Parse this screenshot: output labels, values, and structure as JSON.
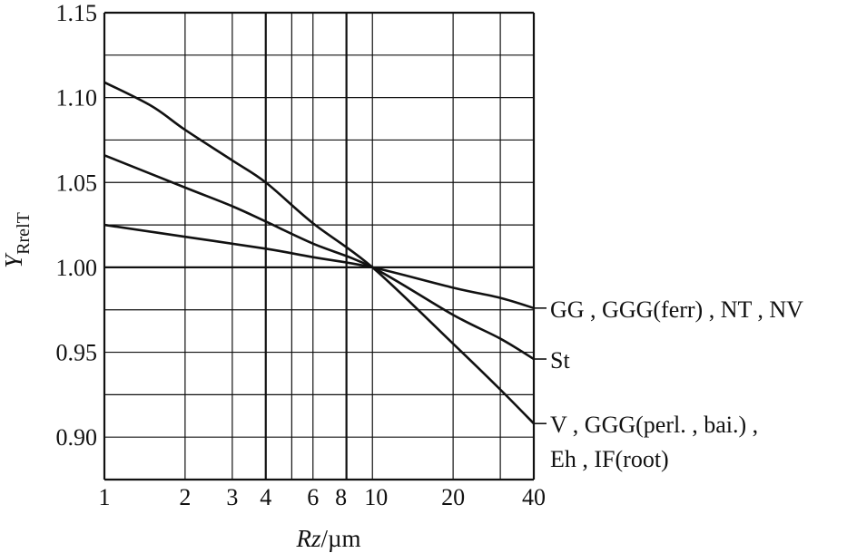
{
  "chart_data": {
    "type": "line",
    "title": "",
    "xlabel": "Rz/µm",
    "xlabel_parts": {
      "italic": "Rz",
      "rest": "/µm"
    },
    "ylabel": "Y_RrelT",
    "ylabel_parts": {
      "main": "Y",
      "sub": "RrelT"
    },
    "x_scale": "log",
    "xlim": [
      1,
      40
    ],
    "ylim": [
      0.875,
      1.15
    ],
    "grid": true,
    "x_ticks": [
      {
        "value": 1,
        "label": "1"
      },
      {
        "value": 2,
        "label": "2"
      },
      {
        "value": 3,
        "label": "3"
      },
      {
        "value": 4,
        "label": "4"
      },
      {
        "value": 6,
        "label": "6"
      },
      {
        "value": 8,
        "label": "8"
      },
      {
        "value": 10,
        "label": "10"
      },
      {
        "value": 20,
        "label": "20"
      },
      {
        "value": 40,
        "label": "40"
      }
    ],
    "x_grid": [
      1,
      2,
      3,
      4,
      5,
      6,
      8,
      10,
      20,
      30,
      40
    ],
    "x_grid_bold": [
      4,
      8
    ],
    "y_ticks": [
      {
        "value": 0.9,
        "label": "0.90"
      },
      {
        "value": 0.95,
        "label": "0.95"
      },
      {
        "value": 1.0,
        "label": "1.00"
      },
      {
        "value": 1.05,
        "label": "1.05"
      },
      {
        "value": 1.1,
        "label": "1.10"
      },
      {
        "value": 1.15,
        "label": "1.15"
      }
    ],
    "y_grid": [
      0.875,
      0.9,
      0.925,
      0.95,
      0.975,
      1.0,
      1.025,
      1.05,
      1.075,
      1.1,
      1.125,
      1.15
    ],
    "y_grid_bold": [
      1.0
    ],
    "series": [
      {
        "name_lines": [
          "GG , GGG(ferr) , NT , NV"
        ],
        "x": [
          1,
          2,
          4,
          6,
          10,
          20,
          30,
          40
        ],
        "values": [
          1.025,
          1.018,
          1.011,
          1.006,
          1.0,
          0.988,
          0.982,
          0.976
        ]
      },
      {
        "name_lines": [
          "St"
        ],
        "x": [
          1,
          2,
          3,
          4,
          6,
          10,
          20,
          30,
          40
        ],
        "values": [
          1.066,
          1.047,
          1.036,
          1.027,
          1.014,
          1.0,
          0.972,
          0.958,
          0.946
        ]
      },
      {
        "name_lines": [
          "V , GGG(perl. , bai.) ,",
          "Eh , IF(root)"
        ],
        "x": [
          1,
          1.5,
          2,
          3,
          4,
          6,
          10,
          20,
          30,
          40
        ],
        "values": [
          1.109,
          1.095,
          1.081,
          1.063,
          1.05,
          1.026,
          1.0,
          0.955,
          0.928,
          0.908
        ]
      }
    ]
  }
}
